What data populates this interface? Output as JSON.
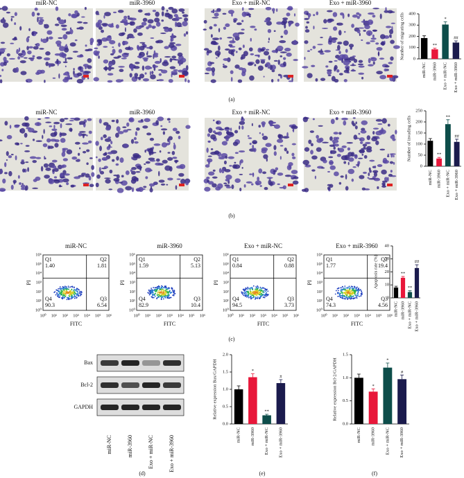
{
  "chart_data": [
    {
      "type": "bar",
      "panel_label": "(a)",
      "ylabel": "Number of migrating cells",
      "categories": [
        "miR-NC",
        "miR-3960",
        "Exo + miR-NC",
        "Exo + miR-3960"
      ],
      "values": [
        185,
        85,
        305,
        145
      ],
      "errors": [
        20,
        10,
        25,
        15
      ],
      "annotations": [
        null,
        "**",
        "*",
        "##"
      ],
      "colors": [
        "#000000",
        "#e8173a",
        "#0d4d4a",
        "#1b1b4d"
      ],
      "ylim": [
        0,
        400
      ],
      "yticks": [
        0,
        100,
        200,
        300,
        400
      ]
    },
    {
      "type": "bar",
      "panel_label": "(b)",
      "ylabel": "Number of invading cells",
      "categories": [
        "miR-NC",
        "miR-3960",
        "Exo + miR-NC",
        "Exo + miR-3960"
      ],
      "values": [
        115,
        35,
        190,
        110
      ],
      "errors": [
        10,
        5,
        20,
        12
      ],
      "annotations": [
        null,
        "**",
        "**",
        "##"
      ],
      "colors": [
        "#000000",
        "#e8173a",
        "#0d4d4a",
        "#1b1b4d"
      ],
      "ylim": [
        0,
        250
      ],
      "yticks": [
        0,
        50,
        100,
        150,
        200,
        250
      ]
    },
    {
      "type": "bar",
      "panel_label": "(c)",
      "ylabel": "Apoptosis rate (%)",
      "categories": [
        "miR-NC",
        "miR-3960",
        "Exo + miR-NC",
        "Exo + miR-3960"
      ],
      "values": [
        8,
        15.5,
        4.5,
        23
      ],
      "errors": [
        1,
        1,
        1,
        2.5
      ],
      "annotations": [
        null,
        "**",
        "**",
        "##"
      ],
      "colors": [
        "#000000",
        "#e8173a",
        "#0d4d4a",
        "#1b1b4d"
      ],
      "ylim": [
        0,
        40
      ],
      "yticks": [
        0,
        10,
        20,
        30,
        40
      ]
    },
    {
      "type": "bar",
      "panel_label": "(e)",
      "ylabel": "Relative expression Bax/GAPDH",
      "categories": [
        "miR-NC",
        "miR-3960",
        "Exo + miR-NC",
        "Exo + miR-3960"
      ],
      "values": [
        1.0,
        1.35,
        0.25,
        1.18
      ],
      "errors": [
        0.1,
        0.1,
        0.03,
        0.1
      ],
      "annotations": [
        null,
        "*",
        "**",
        "#"
      ],
      "colors": [
        "#000000",
        "#e8173a",
        "#0d4d4a",
        "#1b1b4d"
      ],
      "ylim": [
        0,
        2.0
      ],
      "yticks": [
        {
          "value": 0,
          "label": "0.0"
        },
        {
          "value": 0.5,
          "label": "0.5"
        },
        {
          "value": 1,
          "label": "1.0"
        },
        {
          "value": 1.5,
          "label": "1.5"
        },
        {
          "value": 2,
          "label": "2.0"
        }
      ]
    },
    {
      "type": "bar",
      "panel_label": "(f)",
      "ylabel": "Relative expression Bcl-2/GAPDH",
      "categories": [
        "miR-NC",
        "miR-3960",
        "Exo + miR-NC",
        "Exo + miR-3960"
      ],
      "values": [
        1.0,
        0.7,
        1.22,
        0.97
      ],
      "errors": [
        0.08,
        0.06,
        0.1,
        0.09
      ],
      "annotations": [
        null,
        "*",
        "*",
        "#"
      ],
      "colors": [
        "#000000",
        "#e8173a",
        "#0d4d4a",
        "#1b1b4d"
      ],
      "ylim": [
        0,
        1.5
      ],
      "yticks": [
        {
          "value": 0,
          "label": "0.0"
        },
        {
          "value": 0.5,
          "label": "0.5"
        },
        {
          "value": 1,
          "label": "1.0"
        },
        {
          "value": 1.5,
          "label": "1.5"
        }
      ]
    }
  ],
  "image_panels": [
    [
      "miR-NC",
      "miR-3960",
      "Exo + miR-NC",
      "Exo + miR-3960"
    ],
    [
      "miR-NC",
      "miR-3960",
      "Exo + miR-NC",
      "Exo + miR-3960"
    ]
  ],
  "flow": {
    "x_label": "FITC",
    "y_label": "PI",
    "ticks": [
      "10⁰",
      "10¹",
      "10²",
      "10³",
      "10⁴",
      "10⁵",
      "10⁶"
    ],
    "plots": [
      {
        "title": "miR-NC",
        "quadrants": [
          {
            "name": "Q1",
            "value": "1.40"
          },
          {
            "name": "Q2",
            "value": "1.81"
          },
          {
            "name": "Q3",
            "value": "6.54"
          },
          {
            "name": "Q4",
            "value": "90.3"
          }
        ]
      },
      {
        "title": "miR-3960",
        "quadrants": [
          {
            "name": "Q1",
            "value": "1.59"
          },
          {
            "name": "Q2",
            "value": "5.13"
          },
          {
            "name": "Q3",
            "value": "10.4"
          },
          {
            "name": "Q4",
            "value": "82.9"
          }
        ]
      },
      {
        "title": "Exo + miR-NC",
        "quadrants": [
          {
            "name": "Q1",
            "value": "0.84"
          },
          {
            "name": "Q2",
            "value": "0.88"
          },
          {
            "name": "Q3",
            "value": "3.73"
          },
          {
            "name": "Q4",
            "value": "94.5"
          }
        ]
      },
      {
        "title": "Exo + miR-3960",
        "quadrants": [
          {
            "name": "Q1",
            "value": "1.77"
          },
          {
            "name": "Q2",
            "value": "19.4"
          },
          {
            "name": "Q3",
            "value": "4.56"
          },
          {
            "name": "Q4",
            "value": "74.3"
          }
        ]
      }
    ]
  },
  "blot": {
    "panel_label": "(d)",
    "bands": [
      "Bax",
      "Bcl-2",
      "GAPDH"
    ],
    "categories": [
      "miR-NC",
      "miR-3960",
      "Exo + miR-NC",
      "Exo + miR-3960"
    ]
  }
}
